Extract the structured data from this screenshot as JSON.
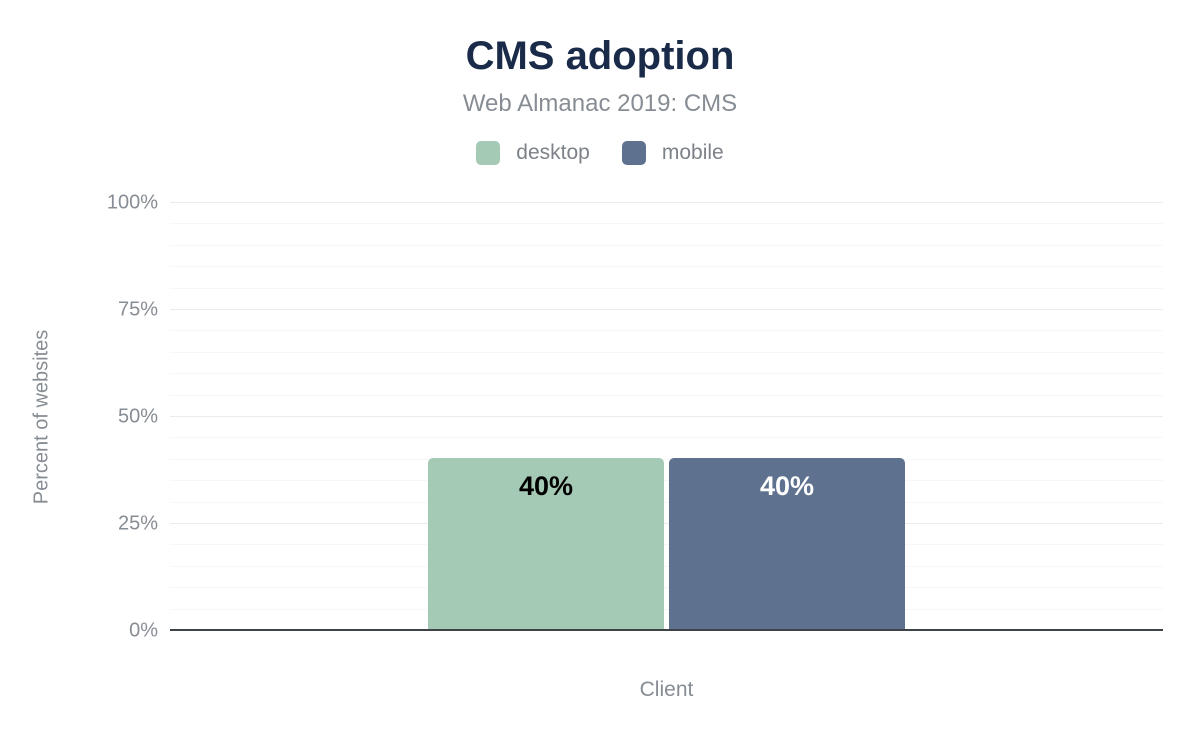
{
  "chart": {
    "title": "CMS adoption",
    "subtitle": "Web Almanac 2019: CMS",
    "y_axis_title": "Percent of websites",
    "x_axis_title": "Client"
  },
  "chart_data": {
    "type": "bar",
    "title": "CMS adoption",
    "subtitle": "Web Almanac 2019: CMS",
    "xlabel": "Client",
    "ylabel": "Percent of websites",
    "categories": [
      "Client"
    ],
    "series": [
      {
        "name": "desktop",
        "values": [
          40
        ],
        "data_labels": [
          "40%"
        ],
        "color": "#a4c9b4",
        "label_color": "#000000"
      },
      {
        "name": "mobile",
        "values": [
          40
        ],
        "data_labels": [
          "40%"
        ],
        "color": "#5e7290",
        "label_color": "#ffffff"
      }
    ],
    "ylim": [
      0,
      100
    ],
    "yticks": [
      0,
      25,
      50,
      75,
      100
    ],
    "ytick_labels": [
      "0%",
      "25%",
      "50%",
      "75%",
      "100%"
    ],
    "minor_grid_step": 5,
    "grid": true,
    "legend_position": "top"
  },
  "colors": {
    "title": "#1a2b49",
    "text_muted": "#878d94",
    "axis_line": "#3d4347",
    "grid_major": "#e9ebec",
    "grid_minor": "#f6f7f7",
    "background": "#ffffff"
  }
}
